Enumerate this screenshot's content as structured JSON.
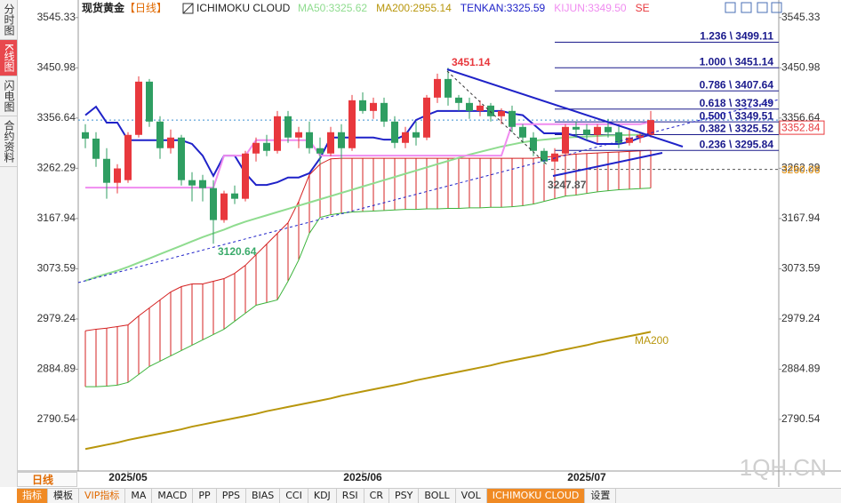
{
  "chart_data": {
    "type": "candlestick",
    "instrument": "现货黄金",
    "period": "【日线】",
    "indicator": "ICHIMOKU CLOUD",
    "up_color": "#e8383d",
    "down_color": "#2f9e62",
    "ylim": [
      2697,
      3565
    ],
    "yticks": [
      3545.33,
      3450.98,
      3356.64,
      3262.29,
      3167.94,
      3073.59,
      2979.24,
      2884.89,
      2790.54
    ],
    "categories": [
      null,
      null,
      null,
      null,
      "2025/05",
      null,
      null,
      null,
      null,
      null,
      null,
      null,
      null,
      null,
      null,
      null,
      null,
      null,
      null,
      null,
      null,
      null,
      null,
      null,
      null,
      null,
      "2025/06",
      null,
      null,
      null,
      null,
      null,
      null,
      null,
      null,
      null,
      null,
      null,
      null,
      null,
      null,
      null,
      null,
      null,
      null,
      null,
      null,
      "2025/07",
      null,
      null,
      null,
      null,
      null,
      null
    ],
    "open": [
      3330,
      3318,
      3280,
      3235,
      3240,
      3325,
      3425,
      3350,
      3300,
      3320,
      3240,
      3240,
      3225,
      3165,
      3215,
      3205,
      3290,
      3310,
      3295,
      3360,
      3320,
      3330,
      3300,
      3290,
      3330,
      3300,
      3390,
      3370,
      3385,
      3350,
      3310,
      3330,
      3320,
      3395,
      3430,
      3395,
      3385,
      3370,
      3380,
      3360,
      3370,
      3340,
      3320,
      3295,
      3275,
      3290,
      3340,
      3335,
      3325,
      3340,
      3330,
      3310,
      3320,
      3325
    ],
    "high": [
      3345,
      3330,
      3300,
      3270,
      3330,
      3435,
      3430,
      3360,
      3335,
      3325,
      3255,
      3250,
      3240,
      3220,
      3230,
      3295,
      3320,
      3325,
      3370,
      3370,
      3340,
      3350,
      3320,
      3340,
      3345,
      3400,
      3405,
      3395,
      3395,
      3360,
      3340,
      3350,
      3400,
      3440,
      3451.14,
      3400,
      3395,
      3390,
      3385,
      3375,
      3380,
      3345,
      3330,
      3300,
      3300,
      3345,
      3350,
      3345,
      3345,
      3355,
      3345,
      3335,
      3330,
      3370
    ],
    "low": [
      3300,
      3265,
      3205,
      3215,
      3235,
      3320,
      3340,
      3280,
      3290,
      3230,
      3200,
      3200,
      3120.64,
      3160,
      3195,
      3200,
      3275,
      3285,
      3290,
      3310,
      3300,
      3290,
      3270,
      3285,
      3280,
      3295,
      3365,
      3355,
      3340,
      3300,
      3300,
      3305,
      3315,
      3385,
      3380,
      3370,
      3355,
      3360,
      3350,
      3345,
      3330,
      3310,
      3285,
      3270,
      3247.87,
      3285,
      3320,
      3315,
      3310,
      3320,
      3300,
      3305,
      3310,
      3320
    ],
    "close": [
      3318,
      3280,
      3235,
      3262,
      3325,
      3425,
      3350,
      3300,
      3320,
      3240,
      3230,
      3225,
      3165,
      3215,
      3205,
      3290,
      3310,
      3295,
      3360,
      3320,
      3330,
      3300,
      3290,
      3330,
      3300,
      3390,
      3370,
      3385,
      3350,
      3310,
      3330,
      3320,
      3395,
      3430,
      3395,
      3385,
      3370,
      3380,
      3360,
      3370,
      3340,
      3320,
      3295,
      3275,
      3290,
      3340,
      3335,
      3325,
      3340,
      3330,
      3310,
      3320,
      3325,
      3352.84
    ],
    "series": [
      {
        "name": "MA50:3325.62",
        "color": "#8fdc8f",
        "values": [
          3051,
          3058,
          3064,
          3070,
          3077,
          3085,
          3093,
          3101,
          3109,
          3117,
          3125,
          3133,
          3140,
          3147,
          3155,
          3162,
          3168,
          3174,
          3180,
          3186,
          3192,
          3198,
          3204,
          3210,
          3216,
          3222,
          3228,
          3234,
          3240,
          3246,
          3252,
          3258,
          3264,
          3270,
          3276,
          3282,
          3288,
          3293,
          3298,
          3303,
          3307,
          3311,
          3314,
          3316,
          3318,
          3320,
          3321,
          3322,
          3323,
          3324,
          3324,
          3325,
          3325,
          3325.62
        ]
      },
      {
        "name": "MA200:2955.14",
        "color": "#b8960c",
        "values": [
          2735,
          2739,
          2743,
          2747,
          2752,
          2756,
          2760,
          2764,
          2768,
          2772,
          2777,
          2781,
          2785,
          2789,
          2793,
          2797,
          2801,
          2806,
          2810,
          2814,
          2818,
          2822,
          2826,
          2830,
          2835,
          2839,
          2843,
          2847,
          2851,
          2855,
          2859,
          2864,
          2868,
          2872,
          2876,
          2880,
          2884,
          2888,
          2892,
          2897,
          2901,
          2905,
          2909,
          2913,
          2918,
          2922,
          2926,
          2930,
          2935,
          2939,
          2943,
          2947,
          2951,
          2955.14
        ]
      },
      {
        "name": "TENKAN:3325.59",
        "color": "#1f22c8",
        "values": [
          3362,
          3378,
          3348,
          3348,
          3315,
          3315,
          3315,
          3315,
          3315,
          3315,
          3308,
          3286,
          3248,
          3286,
          3286,
          3253,
          3231,
          3231,
          3236,
          3245,
          3245,
          3253,
          3281,
          3320,
          3320,
          3320,
          3320,
          3320,
          3316,
          3316,
          3325,
          3353,
          3362,
          3370,
          3370,
          3370,
          3370,
          3370,
          3370,
          3370,
          3365,
          3362,
          3345,
          3328,
          3328,
          3328,
          3323,
          3315,
          3308,
          3308,
          3308,
          3312,
          3320,
          3325.59
        ]
      },
      {
        "name": "KIJUN:3349.50",
        "color": "#f08cf0",
        "values": [
          3226,
          3226,
          3226,
          3226,
          3226,
          3226,
          3226,
          3226,
          3226,
          3226,
          3226,
          3226,
          3226,
          3286,
          3286,
          3286,
          3315,
          3315,
          3315,
          3315,
          3315,
          3315,
          3286,
          3286,
          3286,
          3286,
          3286,
          3286,
          3286,
          3286,
          3286,
          3286,
          3286,
          3286,
          3286,
          3286,
          3286,
          3286,
          3286,
          3286,
          3345,
          3345,
          3345,
          3345,
          3345,
          3345,
          3345,
          3345,
          3345,
          3345,
          3345,
          3345,
          3345,
          3349.5
        ]
      }
    ],
    "signal_label": "SE",
    "signal_color": "#e8383d",
    "cloud": {
      "span_a_color": "#3cb43c",
      "span_b_color": "#d42020",
      "span_a": [
        2852,
        2852,
        2853,
        2855,
        2860,
        2875,
        2890,
        2900,
        2910,
        2920,
        2930,
        2940,
        2950,
        2960,
        2975,
        2990,
        3005,
        3010,
        3015,
        3050,
        3090,
        3140,
        3170,
        3175,
        3178,
        3180,
        3181,
        3182,
        3183,
        3184,
        3185,
        3185,
        3186,
        3186,
        3187,
        3187,
        3188,
        3188,
        3189,
        3189,
        3190,
        3192,
        3195,
        3200,
        3205,
        3210,
        3212,
        3215,
        3218,
        3220,
        3222,
        3223,
        3224,
        3225
      ],
      "span_b": [
        2957,
        2960,
        2962,
        2965,
        2968,
        2985,
        3000,
        3015,
        3030,
        3040,
        3045,
        3045,
        3050,
        3055,
        3065,
        3080,
        3100,
        3120,
        3140,
        3160,
        3200,
        3250,
        3270,
        3280,
        3281,
        3281,
        3281,
        3281,
        3281,
        3281,
        3281,
        3281,
        3281,
        3281,
        3281,
        3281,
        3281,
        3281,
        3281,
        3281,
        3281,
        3281,
        3281,
        3283,
        3285,
        3287,
        3289,
        3290,
        3291,
        3292,
        3293,
        3294,
        3295,
        3296
      ]
    },
    "fibonacci": [
      {
        "label": "1.236 \\ 3499.11",
        "value": 3499.11
      },
      {
        "label": "1.000 \\ 3451.14",
        "value": 3451.14
      },
      {
        "label": "0.786 \\ 3407.64",
        "value": 3407.64
      },
      {
        "label": "0.618 \\ 3373.49",
        "value": 3373.49
      },
      {
        "label": "0.500 \\ 3349.51",
        "value": 3349.51
      },
      {
        "label": "0.382 \\ 3325.52",
        "value": 3325.52
      },
      {
        "label": "0.236 \\ 3295.84",
        "value": 3295.84
      }
    ],
    "fib_color": "#1a1a8c",
    "last_price": 3352.84,
    "reference_price": 3260.06,
    "annotations": [
      {
        "value": 3451.14,
        "color": "#e8383d"
      },
      {
        "value": 3120.64,
        "color": "#3aaa6a"
      },
      {
        "value": 3247.87,
        "color": "#555555"
      },
      {
        "text": "MA200",
        "color": "#b8960c"
      }
    ]
  },
  "ui": {
    "side_tabs": [
      "分时图",
      "K线图",
      "闪电图",
      "合约资料"
    ],
    "timeframe": "日线",
    "toolbar": [
      "指标",
      "模板",
      "VIP指标",
      "MA",
      "MACD",
      "PP",
      "PPS",
      "BIAS",
      "CCI",
      "KDJ",
      "RSI",
      "CR",
      "PSY",
      "BOLL",
      "VOL",
      "ICHIMOKU CLOUD",
      "设置"
    ],
    "watermark": "1QH.CN"
  }
}
